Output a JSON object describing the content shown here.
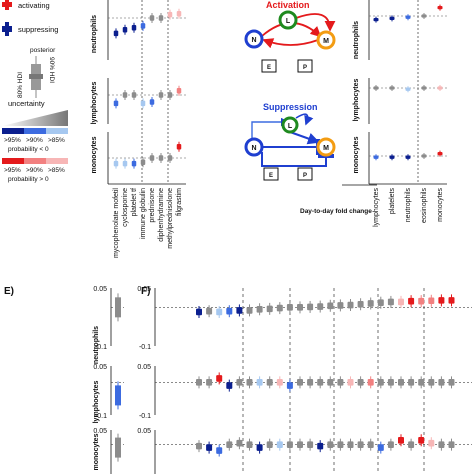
{
  "legend": {
    "activating": "activating",
    "suppressing": "suppressing",
    "posterior": "posterior",
    "hdi80": "80% HDI",
    "hdi90": "90% HDI",
    "uncertainty": "uncertainty",
    "blue_levels": [
      ">95%",
      ">90%",
      ">85%"
    ],
    "blue_caption": "probability < 0",
    "red_levels": [
      ">95%",
      ">90%",
      ">85%"
    ],
    "red_caption": "probability > 0",
    "colors": {
      "red_strong": "#e41a1c",
      "red_mid": "#f28080",
      "red_light": "#f7b6b6",
      "blue_strong": "#0b1f8f",
      "blue_mid": "#3c6be0",
      "blue_light": "#a6c8f0",
      "gray": "#8c8c8c"
    }
  },
  "diagram": {
    "activation_title": "Activation",
    "suppression_title": "Suppression",
    "nodes": [
      "N",
      "L",
      "M",
      "E",
      "P"
    ],
    "colors": {
      "N": "#1f3fd0",
      "L": "#1f8a1f",
      "M": "#f39c12",
      "activation": "#e41a1c",
      "suppression": "#1f3fd0"
    }
  },
  "panel_E_label": "E)",
  "panel_F_label": "F)",
  "day_to_day_label": "Day-to-day fold change",
  "chart_data": [
    {
      "id": "left-drug-panels",
      "type": "scatter",
      "rows": [
        "neutrophils",
        "lymphocytes",
        "monocytes"
      ],
      "categories": [
        "mycophenolate mofetil",
        "cyclosporine",
        "platelet tf",
        "immune globulin",
        "prednisone",
        "diphenhydramine",
        "methylprednisolone",
        "filgrastim"
      ],
      "series": [
        {
          "values": [
            -0.55,
            -0.42,
            -0.35,
            -0.28,
            0.0,
            0.0,
            0.12,
            0.15
          ],
          "tiers": [
            "b1",
            "b1",
            "b1",
            "b2",
            "g",
            "g",
            "r3",
            "r3"
          ]
        },
        {
          "values": [
            -0.3,
            0.0,
            0.0,
            -0.3,
            -0.25,
            0.0,
            0.0,
            0.15
          ],
          "tiers": [
            "b2",
            "g",
            "g",
            "b3",
            "b2",
            "g",
            "g",
            "r2"
          ]
        },
        {
          "values": [
            -0.2,
            -0.2,
            -0.2,
            -0.15,
            0.0,
            0.0,
            0.0,
            0.4
          ],
          "tiers": [
            "b3",
            "b3",
            "b2",
            "g",
            "g",
            "g",
            "g",
            "r1"
          ]
        }
      ]
    },
    {
      "id": "right-cell-panels",
      "type": "scatter",
      "rows": [
        "neutrophils",
        "lymphocytes",
        "monocytes"
      ],
      "categories": [
        "lymphocytes",
        "platelets",
        "neutrophils",
        "eosinophils",
        "monocytes"
      ],
      "series": [
        {
          "values": [
            -0.15,
            -0.1,
            -0.05,
            0.0,
            0.35
          ],
          "tiers": [
            "b1",
            "b1",
            "b2",
            "g",
            "r1"
          ]
        },
        {
          "values": [
            0.0,
            0.0,
            -0.05,
            0.0,
            0.0
          ],
          "tiers": [
            "g",
            "g",
            "b3",
            "g",
            "r3"
          ]
        },
        {
          "values": [
            -0.05,
            -0.05,
            -0.05,
            0.0,
            0.1
          ],
          "tiers": [
            "b2",
            "b1",
            "b1",
            "g",
            "r1"
          ]
        }
      ]
    },
    {
      "id": "panel-E",
      "type": "scatter",
      "rows": [
        "neutrophils",
        "lymphocytes",
        "monocytes"
      ],
      "ylim": [
        -0.1,
        0.05
      ],
      "tick_labels": [
        "0.05",
        "-0.1"
      ],
      "series": [
        {
          "values": [
            0.0
          ],
          "tiers": [
            "g"
          ]
        },
        {
          "values": [
            -0.04
          ],
          "tiers": [
            "b2"
          ]
        },
        {
          "values": [
            -0.01
          ],
          "tiers": [
            "g"
          ]
        }
      ]
    },
    {
      "id": "panel-F",
      "type": "scatter",
      "rows": [
        "neutrophils",
        "lymphocytes",
        "monocytes"
      ],
      "ylim": [
        -0.1,
        0.05
      ],
      "tick_labels": [
        "0.05",
        "-0.1"
      ],
      "series": [
        {
          "values": [
            -0.012,
            -0.01,
            -0.012,
            -0.01,
            -0.008,
            -0.008,
            -0.005,
            -0.004,
            -0.002,
            0.0,
            0.0,
            0.001,
            0.002,
            0.004,
            0.005,
            0.006,
            0.008,
            0.01,
            0.012,
            0.014,
            0.014,
            0.016,
            0.016,
            0.017,
            0.018,
            0.018
          ],
          "tiers": [
            "b1",
            "g",
            "b3",
            "b2",
            "b1",
            "g",
            "g",
            "g",
            "g",
            "g",
            "g",
            "g",
            "g",
            "g",
            "g",
            "g",
            "g",
            "g",
            "g",
            "g",
            "r3",
            "r1",
            "r2",
            "r2",
            "r1",
            "r1"
          ]
        },
        {
          "values": [
            0.0,
            0.0,
            0.012,
            -0.01,
            0.0,
            0.0,
            0.0,
            0.0,
            0.0,
            -0.01,
            0.0,
            0.0,
            0.0,
            0.0,
            0.0,
            0.0,
            0.0,
            0.0,
            0.0,
            0.0,
            0.0,
            0.0,
            0.0,
            0.0,
            0.0,
            0.0
          ],
          "tiers": [
            "g",
            "g",
            "r1",
            "b1",
            "g",
            "g",
            "b3",
            "g",
            "r3",
            "b2",
            "g",
            "g",
            "g",
            "g",
            "g",
            "r3",
            "g",
            "r2",
            "g",
            "g",
            "g",
            "g",
            "g",
            "g",
            "g",
            "g"
          ]
        },
        {
          "values": [
            -0.005,
            -0.01,
            -0.02,
            0.0,
            0.005,
            0.0,
            -0.01,
            0.0,
            0.0,
            0.0,
            0.0,
            0.0,
            -0.005,
            0.0,
            0.0,
            0.0,
            0.0,
            0.0,
            -0.01,
            0.0,
            0.015,
            0.0,
            0.015,
            0.005,
            0.0,
            0.0
          ],
          "tiers": [
            "g",
            "b1",
            "b2",
            "g",
            "g",
            "g",
            "b1",
            "g",
            "b3",
            "g",
            "g",
            "g",
            "b1",
            "g",
            "g",
            "g",
            "g",
            "g",
            "b2",
            "g",
            "r1",
            "g",
            "r1",
            "r3",
            "g",
            "g"
          ]
        }
      ]
    }
  ]
}
